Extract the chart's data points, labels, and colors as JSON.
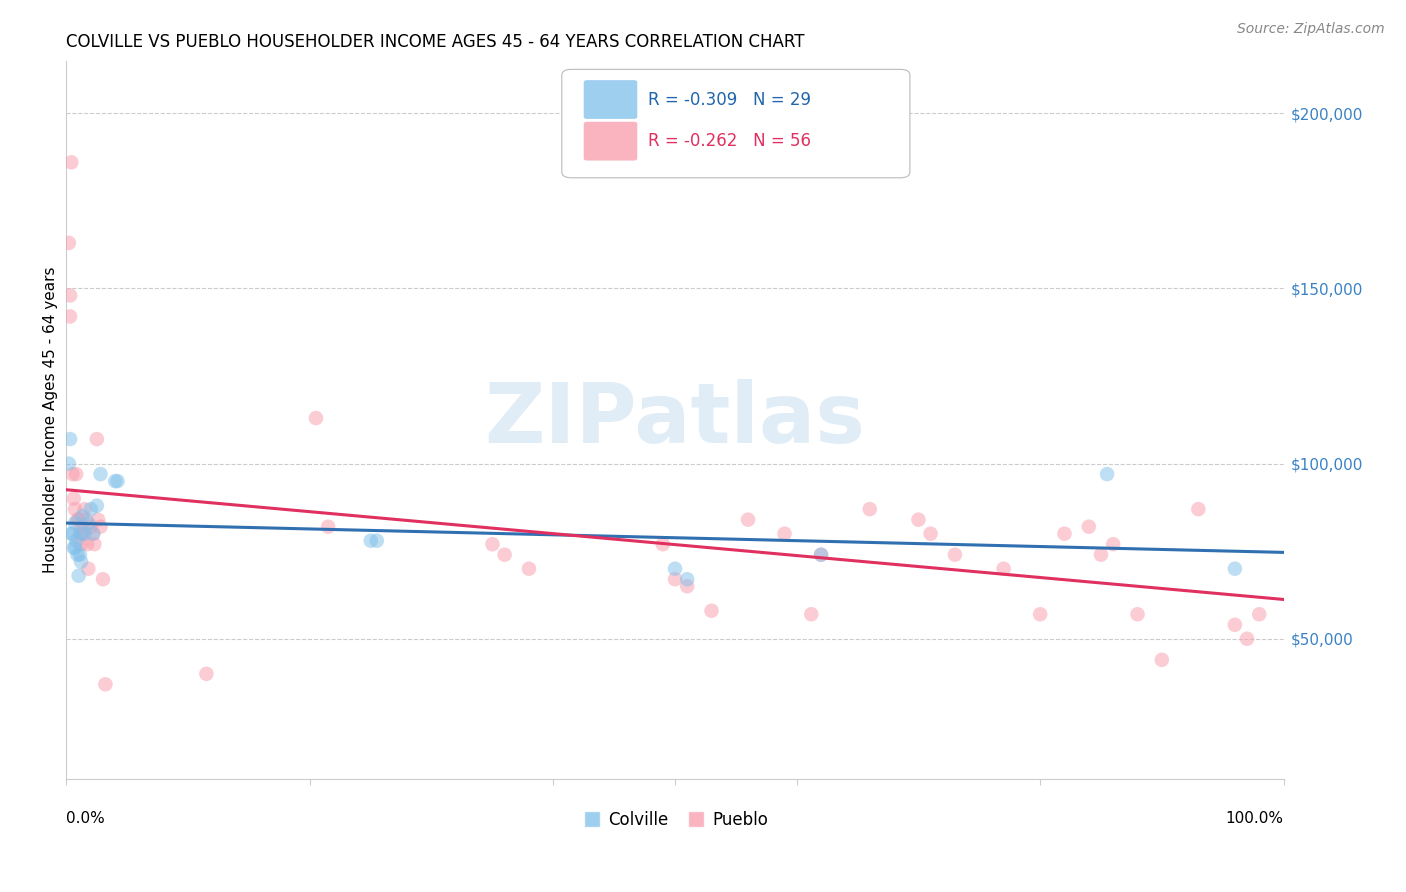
{
  "title": "COLVILLE VS PUEBLO HOUSEHOLDER INCOME AGES 45 - 64 YEARS CORRELATION CHART",
  "source": "Source: ZipAtlas.com",
  "ylabel": "Householder Income Ages 45 - 64 years",
  "ytick_labels": [
    "$50,000",
    "$100,000",
    "$150,000",
    "$200,000"
  ],
  "ytick_values": [
    50000,
    100000,
    150000,
    200000
  ],
  "ymin": 10000,
  "ymax": 215000,
  "xmin": 0.0,
  "xmax": 1.0,
  "legend_colville": "R = -0.309   N = 29",
  "legend_pueblo": "R = -0.262   N = 56",
  "colville_color": "#7fbfea",
  "pueblo_color": "#f99bab",
  "colville_line_color": "#3070b0",
  "pueblo_line_color": "#e03060",
  "watermark": "ZIPatlas",
  "colville_x": [
    0.002,
    0.003,
    0.004,
    0.005,
    0.006,
    0.007,
    0.007,
    0.008,
    0.009,
    0.01,
    0.011,
    0.012,
    0.012,
    0.013,
    0.015,
    0.018,
    0.02,
    0.022,
    0.025,
    0.028,
    0.04,
    0.042,
    0.25,
    0.255,
    0.5,
    0.51,
    0.62,
    0.855,
    0.96
  ],
  "colville_y": [
    100000,
    107000,
    80000,
    80000,
    76000,
    83000,
    76000,
    78000,
    74000,
    68000,
    74000,
    72000,
    80000,
    85000,
    80000,
    83000,
    87000,
    80000,
    88000,
    97000,
    95000,
    95000,
    78000,
    78000,
    70000,
    67000,
    74000,
    97000,
    70000
  ],
  "pueblo_x": [
    0.002,
    0.003,
    0.003,
    0.004,
    0.005,
    0.006,
    0.007,
    0.008,
    0.009,
    0.01,
    0.011,
    0.012,
    0.013,
    0.014,
    0.015,
    0.016,
    0.017,
    0.018,
    0.02,
    0.022,
    0.023,
    0.025,
    0.026,
    0.028,
    0.03,
    0.032,
    0.115,
    0.205,
    0.215,
    0.35,
    0.36,
    0.38,
    0.49,
    0.5,
    0.51,
    0.53,
    0.56,
    0.59,
    0.612,
    0.62,
    0.66,
    0.7,
    0.71,
    0.73,
    0.77,
    0.8,
    0.82,
    0.84,
    0.85,
    0.86,
    0.88,
    0.9,
    0.93,
    0.96,
    0.97,
    0.98
  ],
  "pueblo_y": [
    163000,
    148000,
    142000,
    186000,
    97000,
    90000,
    87000,
    97000,
    84000,
    84000,
    80000,
    77000,
    82000,
    80000,
    87000,
    84000,
    77000,
    70000,
    82000,
    80000,
    77000,
    107000,
    84000,
    82000,
    67000,
    37000,
    40000,
    113000,
    82000,
    77000,
    74000,
    70000,
    77000,
    67000,
    65000,
    58000,
    84000,
    80000,
    57000,
    74000,
    87000,
    84000,
    80000,
    74000,
    70000,
    57000,
    80000,
    82000,
    74000,
    77000,
    57000,
    44000,
    87000,
    54000,
    50000,
    57000
  ],
  "title_fontsize": 12,
  "axis_label_fontsize": 11,
  "tick_fontsize": 11,
  "legend_fontsize": 12,
  "source_fontsize": 10,
  "watermark_fontsize": 60,
  "marker_size": 110,
  "marker_alpha": 0.5,
  "line_alpha": 1.0,
  "line_width": 2.2
}
